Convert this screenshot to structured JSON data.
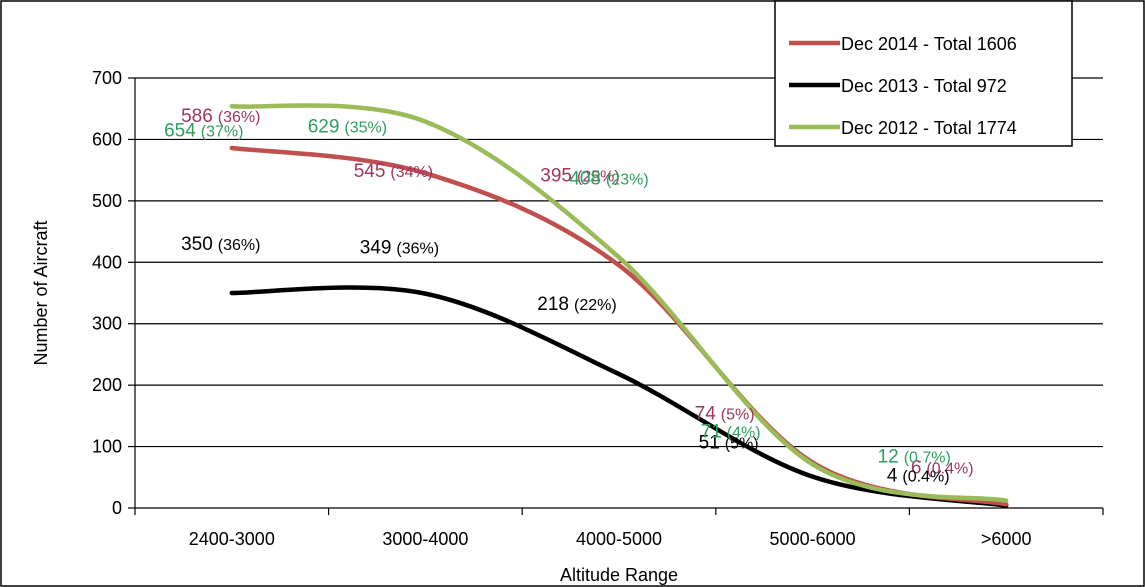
{
  "chart_data": {
    "type": "line",
    "title": "",
    "xlabel": "Altitude Range",
    "ylabel": "Number of Aircraft",
    "categories": [
      "2400-3000",
      "3000-4000",
      "4000-5000",
      "5000-6000",
      ">6000"
    ],
    "ylim": [
      0,
      700
    ],
    "yticks": [
      0,
      100,
      200,
      300,
      400,
      500,
      600,
      700
    ],
    "grid": true,
    "legend_position": "top-right",
    "series": [
      {
        "name": "Dec 2014 - Total 1606",
        "color": "#c0504d",
        "label_color": "#a0365e",
        "values": [
          586,
          545,
          395,
          74,
          6
        ],
        "labels": [
          {
            "value": "586",
            "pct": "(36%)"
          },
          {
            "value": "545",
            "pct": "(34%)"
          },
          {
            "value": "395",
            "pct": "(25%)"
          },
          {
            "value": "74",
            "pct": "(5%)"
          },
          {
            "value": "6",
            "pct": "(0.4%)"
          }
        ]
      },
      {
        "name": "Dec 2013 - Total 972",
        "color": "#000000",
        "label_color": "#000000",
        "values": [
          350,
          349,
          218,
          51,
          4
        ],
        "labels": [
          {
            "value": "350",
            "pct": "(36%)"
          },
          {
            "value": "349",
            "pct": "(36%)"
          },
          {
            "value": "218",
            "pct": "(22%)"
          },
          {
            "value": "51",
            "pct": "(5%)"
          },
          {
            "value": "4",
            "pct": "(0.4%)"
          }
        ]
      },
      {
        "name": "Dec 2012 - Total 1774",
        "color": "#9bbb59",
        "label_color": "#2e9e5e",
        "values": [
          654,
          629,
          408,
          71,
          12
        ],
        "labels": [
          {
            "value": "654",
            "pct": "(37%)"
          },
          {
            "value": "629",
            "pct": "(35%)"
          },
          {
            "value": "408",
            "pct": "(23%)"
          },
          {
            "value": "71",
            "pct": "(4%)"
          },
          {
            "value": "12",
            "pct": "(0.7%)"
          }
        ]
      }
    ]
  }
}
